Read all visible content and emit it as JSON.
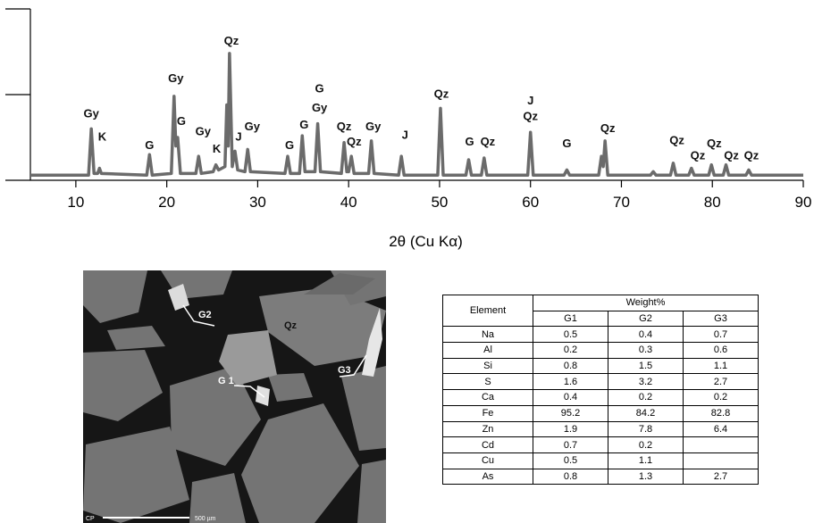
{
  "chart_data": {
    "type": "line",
    "x": [
      5,
      11.4,
      11.7,
      12.0,
      12.4,
      12.6,
      12.8,
      17.8,
      18.1,
      18.4,
      20.5,
      20.8,
      21.0,
      21.2,
      21.5,
      23.2,
      23.5,
      23.8,
      25.1,
      25.4,
      25.7,
      26.4,
      26.6,
      26.75,
      26.9,
      27.2,
      27.5,
      27.8,
      28.6,
      28.9,
      29.2,
      33.0,
      33.3,
      33.6,
      34.6,
      34.9,
      35.2,
      36.3,
      36.6,
      36.9,
      39.2,
      39.5,
      39.8,
      40.0,
      40.3,
      40.6,
      42.2,
      42.5,
      42.8,
      45.5,
      45.8,
      46.1,
      49.8,
      50.1,
      50.4,
      52.9,
      53.2,
      53.5,
      54.6,
      54.9,
      55.2,
      59.7,
      60.0,
      60.3,
      63.7,
      64.0,
      64.3,
      67.5,
      67.8,
      68.0,
      68.2,
      68.5,
      73.2,
      73.5,
      73.8,
      75.4,
      75.7,
      76.0,
      77.4,
      77.7,
      78.0,
      79.6,
      79.9,
      80.2,
      81.2,
      81.5,
      81.8,
      83.7,
      84.0,
      84.3,
      90
    ],
    "values": [
      3,
      3,
      30,
      4,
      4,
      7,
      4,
      3,
      15,
      3,
      4,
      49,
      20,
      25,
      4,
      4,
      14,
      4,
      5,
      9,
      6,
      8,
      44,
      20,
      74,
      8,
      17,
      6,
      5,
      18,
      5,
      4,
      14,
      4,
      4,
      26,
      5,
      5,
      33,
      5,
      4,
      22,
      5,
      5,
      14,
      4,
      4,
      23,
      4,
      3,
      14,
      3,
      3,
      42,
      3,
      3,
      12,
      3,
      3,
      13,
      3,
      3,
      28,
      3,
      3,
      6,
      3,
      3,
      14,
      8,
      23,
      3,
      3,
      5,
      3,
      3,
      10,
      3,
      3,
      7,
      3,
      3,
      9,
      3,
      3,
      9,
      3,
      3,
      6,
      3,
      3
    ],
    "color": "#6b6b6b",
    "xlabel": "2θ (Cu Kα)",
    "xlim": [
      5,
      90
    ],
    "xticks": [
      10,
      20,
      30,
      40,
      50,
      60,
      70,
      80,
      90
    ],
    "ylim": [
      0,
      100
    ],
    "yticks": [
      0,
      50,
      100
    ],
    "annotations": [
      {
        "text": "Gy",
        "x": 11.7,
        "y": 38.5
      },
      {
        "text": "K",
        "x": 12.9,
        "y": 25
      },
      {
        "text": "G",
        "x": 18.1,
        "y": 20
      },
      {
        "text": "Gy",
        "x": 21.0,
        "y": 59
      },
      {
        "text": "G",
        "x": 21.6,
        "y": 34
      },
      {
        "text": "Gy",
        "x": 24.0,
        "y": 28
      },
      {
        "text": "K",
        "x": 25.5,
        "y": 18
      },
      {
        "text": "Qz",
        "x": 27.1,
        "y": 81
      },
      {
        "text": "J",
        "x": 27.9,
        "y": 25
      },
      {
        "text": "Gy",
        "x": 29.4,
        "y": 31
      },
      {
        "text": "G",
        "x": 33.5,
        "y": 20
      },
      {
        "text": "G",
        "x": 35.1,
        "y": 32
      },
      {
        "text": "G",
        "x": 36.8,
        "y": 53
      },
      {
        "text": "Gy",
        "x": 36.8,
        "y": 42
      },
      {
        "text": "Qz",
        "x": 39.5,
        "y": 31
      },
      {
        "text": "Qz",
        "x": 40.6,
        "y": 22
      },
      {
        "text": "Gy",
        "x": 42.7,
        "y": 31
      },
      {
        "text": "J",
        "x": 46.2,
        "y": 26
      },
      {
        "text": "Qz",
        "x": 50.2,
        "y": 50
      },
      {
        "text": "G",
        "x": 53.3,
        "y": 22
      },
      {
        "text": "Qz",
        "x": 55.3,
        "y": 22
      },
      {
        "text": "J",
        "x": 60.0,
        "y": 46
      },
      {
        "text": "Qz",
        "x": 60.0,
        "y": 37
      },
      {
        "text": "G",
        "x": 64.0,
        "y": 21
      },
      {
        "text": "Qz",
        "x": 68.5,
        "y": 30
      },
      {
        "text": "Qz",
        "x": 76.1,
        "y": 23
      },
      {
        "text": "Qz",
        "x": 78.4,
        "y": 14
      },
      {
        "text": "Qz",
        "x": 80.2,
        "y": 21
      },
      {
        "text": "Qz",
        "x": 82.1,
        "y": 14
      },
      {
        "text": "Qz",
        "x": 84.3,
        "y": 14
      }
    ]
  },
  "image": {
    "labels": [
      {
        "text": "G2"
      },
      {
        "text": "Qz"
      },
      {
        "text": "G3"
      },
      {
        "text": "G 1"
      }
    ],
    "scale_bar": "500 µm",
    "corner": "CP"
  },
  "table": {
    "header": {
      "element": "Element",
      "group": "Weight%",
      "columns": [
        "G1",
        "G2",
        "G3"
      ]
    },
    "rows": [
      [
        "Na",
        0.5,
        0.4,
        0.7
      ],
      [
        "Al",
        0.2,
        0.3,
        0.6
      ],
      [
        "Si",
        0.8,
        1.5,
        1.1
      ],
      [
        "S",
        1.6,
        3.2,
        2.7
      ],
      [
        "Ca",
        0.4,
        0.2,
        0.2
      ],
      [
        "Fe",
        95.2,
        84.2,
        82.8
      ],
      [
        "Zn",
        1.9,
        7.8,
        6.4
      ],
      [
        "Cd",
        0.7,
        0.2,
        null
      ],
      [
        "Cu",
        0.5,
        1.1,
        null
      ],
      [
        "As",
        0.8,
        1.3,
        2.7
      ]
    ]
  }
}
